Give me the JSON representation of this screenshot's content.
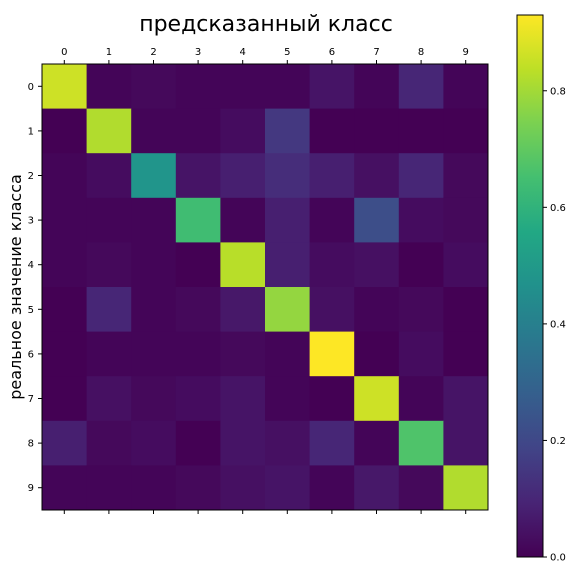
{
  "chart_data": {
    "type": "heatmap",
    "title": "предсказанный класс",
    "xlabel": "",
    "ylabel": "реальное значение класса",
    "x_categories": [
      "0",
      "1",
      "2",
      "3",
      "4",
      "5",
      "6",
      "7",
      "8",
      "9"
    ],
    "y_categories": [
      "0",
      "1",
      "2",
      "3",
      "4",
      "5",
      "6",
      "7",
      "8",
      "9"
    ],
    "x_ticks_position": "top",
    "colormap": "viridis",
    "color_range": [
      0.0,
      0.93
    ],
    "colorbar_ticks": [
      "0.0",
      "0.2",
      "0.4",
      "0.6",
      "0.8"
    ],
    "colorbar_tick_values": [
      0.0,
      0.2,
      0.4,
      0.6,
      0.8
    ],
    "values": [
      [
        0.86,
        0.01,
        0.02,
        0.01,
        0.01,
        0.01,
        0.05,
        0.01,
        0.1,
        0.01
      ],
      [
        0.0,
        0.82,
        0.01,
        0.01,
        0.03,
        0.15,
        0.0,
        0.0,
        0.0,
        0.0
      ],
      [
        0.01,
        0.03,
        0.48,
        0.05,
        0.08,
        0.12,
        0.08,
        0.04,
        0.1,
        0.02
      ],
      [
        0.01,
        0.01,
        0.01,
        0.64,
        0.01,
        0.08,
        0.01,
        0.22,
        0.03,
        0.02
      ],
      [
        0.01,
        0.02,
        0.01,
        0.0,
        0.83,
        0.08,
        0.03,
        0.04,
        0.0,
        0.03
      ],
      [
        0.0,
        0.1,
        0.01,
        0.02,
        0.06,
        0.78,
        0.04,
        0.01,
        0.02,
        0.0
      ],
      [
        0.0,
        0.01,
        0.01,
        0.01,
        0.02,
        0.01,
        0.93,
        0.0,
        0.03,
        0.0
      ],
      [
        0.0,
        0.04,
        0.02,
        0.03,
        0.05,
        0.01,
        0.0,
        0.86,
        0.01,
        0.05
      ],
      [
        0.08,
        0.02,
        0.03,
        0.0,
        0.05,
        0.04,
        0.1,
        0.01,
        0.67,
        0.05
      ],
      [
        0.01,
        0.01,
        0.01,
        0.02,
        0.04,
        0.05,
        0.01,
        0.06,
        0.02,
        0.82
      ]
    ]
  }
}
